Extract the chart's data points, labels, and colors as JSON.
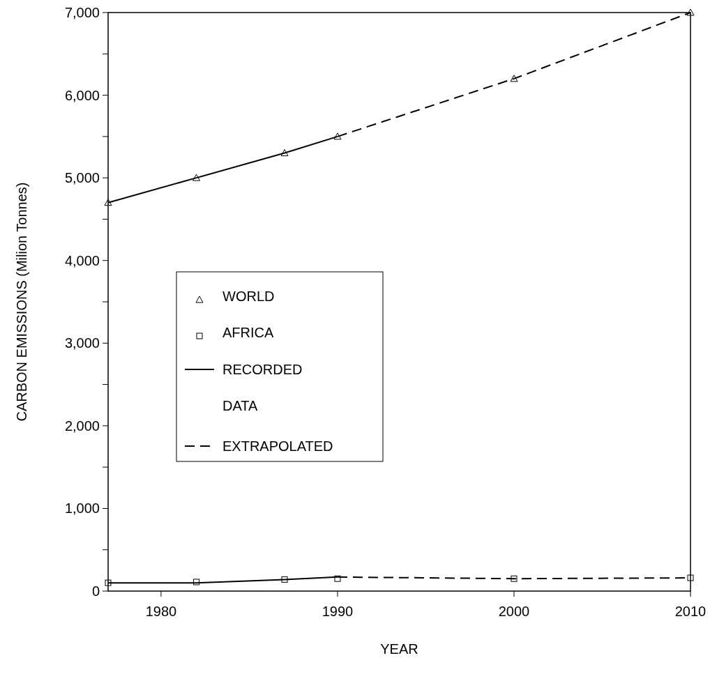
{
  "chart_data": {
    "type": "line",
    "xlabel": "YEAR",
    "ylabel": "CARBON EMISSIONS (Milion Tonnes)",
    "xlim": [
      1977,
      2010
    ],
    "xticks": [
      1980,
      1990,
      2000,
      2010
    ],
    "ylim": [
      0,
      7000
    ],
    "yticks": [
      0,
      {
        "value": 500,
        "label": null
      },
      {
        "value": 1000,
        "label": "1,000"
      },
      {
        "value": 1500,
        "label": null
      },
      {
        "value": 2000,
        "label": "2,000"
      },
      {
        "value": 2500,
        "label": null
      },
      {
        "value": 3000,
        "label": "3,000"
      },
      {
        "value": 3500,
        "label": null
      },
      {
        "value": 4000,
        "label": "4,000"
      },
      {
        "value": 4500,
        "label": null
      },
      {
        "value": 5000,
        "label": "5,000"
      },
      {
        "value": 5500,
        "label": null
      },
      {
        "value": 6000,
        "label": "6,000"
      },
      {
        "value": 6500,
        "label": null
      },
      {
        "value": 7000,
        "label": "7,000"
      }
    ],
    "grid": false,
    "legend": "left",
    "series": [
      {
        "name": "WORLD",
        "type": "scatter",
        "marker": "triangle",
        "color": "#000000",
        "x": [
          1977,
          1982,
          1987,
          1990,
          2000,
          2010
        ],
        "values": [
          4700,
          5000,
          5300,
          5500,
          6200,
          7000
        ]
      },
      {
        "name": "AFRICA",
        "type": "scatter",
        "marker": "square",
        "color": "#000000",
        "x": [
          1977,
          1982,
          1987,
          1990,
          2000,
          2010
        ],
        "values": [
          100,
          110,
          140,
          150,
          150,
          160
        ]
      },
      {
        "name": "RECORDED DATA",
        "line_style": "solid",
        "marker": "none",
        "color": "#000000",
        "x": [
          1977,
          1982,
          1987,
          1990
        ],
        "values": [
          4700,
          5000,
          5300,
          5500
        ]
      },
      {
        "line_style": "solid",
        "marker": "none",
        "color": "#000000",
        "x": [
          1977,
          1982,
          1987,
          1990
        ],
        "values": [
          100,
          100,
          140,
          170
        ]
      },
      {
        "name": "EXTRAPOLATED",
        "line_style": "dashed",
        "marker": "none",
        "color": "#000000",
        "x": [
          1990,
          2000,
          2010
        ],
        "values": [
          5500,
          6200,
          7000
        ]
      },
      {
        "line_style": "dashed",
        "marker": "none",
        "color": "#000000",
        "x": [
          1990,
          2000,
          2010
        ],
        "values": [
          170,
          150,
          160
        ]
      }
    ]
  }
}
